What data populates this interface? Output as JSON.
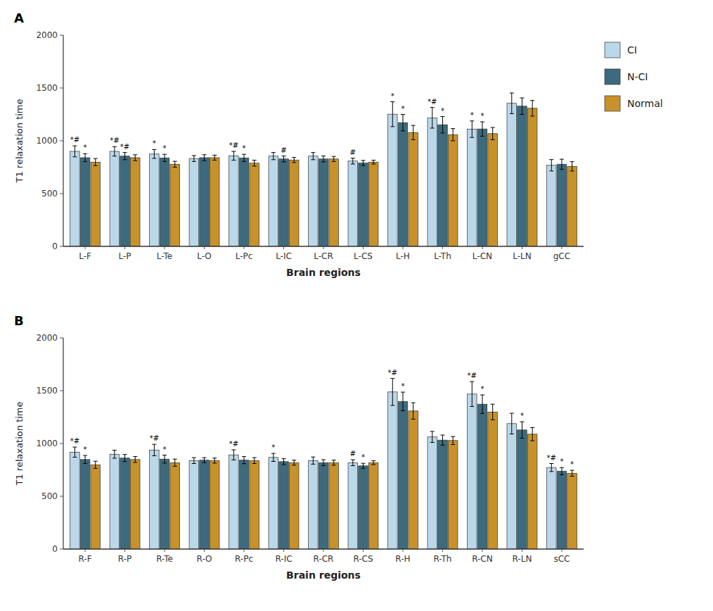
{
  "chart_data": [
    {
      "type": "bar",
      "title": "A",
      "xlabel": "Brain regions",
      "ylabel": "T1 relaxation time",
      "categories": [
        "L-F",
        "L-P",
        "L-Te",
        "L-O",
        "L-Pc",
        "L-IC",
        "L-CR",
        "L-CS",
        "L-H",
        "L-Th",
        "L-CN",
        "L-LN",
        "gCC"
      ],
      "series": [
        {
          "name": "CI",
          "color": "#bbd8ea",
          "values": [
            900,
            900,
            875,
            832,
            858,
            855,
            855,
            808,
            1252,
            1218,
            1110,
            1355,
            768
          ],
          "errors": [
            52,
            45,
            42,
            28,
            42,
            34,
            34,
            28,
            118,
            98,
            78,
            98,
            54
          ],
          "annotations": [
            "*#",
            "*#",
            "*",
            null,
            "*#",
            null,
            null,
            "#",
            "*",
            "*#",
            "*",
            null,
            null
          ]
        },
        {
          "name": "N-CI",
          "color": "#3d6b7d",
          "values": [
            840,
            855,
            838,
            840,
            838,
            828,
            828,
            790,
            1172,
            1152,
            1112,
            1328,
            778
          ],
          "errors": [
            38,
            34,
            34,
            28,
            34,
            28,
            28,
            24,
            78,
            78,
            68,
            78,
            48
          ],
          "annotations": [
            "*",
            "*#",
            "*",
            null,
            "*",
            "#",
            null,
            null,
            "*",
            "*",
            "*",
            null,
            null
          ]
        },
        {
          "name": "Normal",
          "color": "#c8922a",
          "values": [
            798,
            840,
            778,
            840,
            788,
            818,
            828,
            798,
            1078,
            1058,
            1068,
            1308,
            758
          ],
          "errors": [
            34,
            28,
            28,
            24,
            28,
            24,
            24,
            18,
            68,
            58,
            58,
            74,
            44
          ]
        }
      ],
      "ylim": [
        0,
        2000
      ],
      "yticks": [
        0,
        500,
        1000,
        1500,
        2000
      ],
      "grid": false,
      "legend": "right"
    },
    {
      "type": "bar",
      "title": "B",
      "xlabel": "Brain regions",
      "ylabel": "T1 relaxation time",
      "categories": [
        "R-F",
        "R-P",
        "R-Te",
        "R-O",
        "R-Pc",
        "R-IC",
        "R-CR",
        "R-CS",
        "R-H",
        "R-Th",
        "R-CN",
        "R-LN",
        "sCC"
      ],
      "series": [
        {
          "name": "CI",
          "color": "#bbd8ea",
          "values": [
            918,
            898,
            938,
            838,
            892,
            868,
            838,
            818,
            1488,
            1062,
            1468,
            1188,
            772
          ],
          "errors": [
            48,
            38,
            54,
            28,
            48,
            38,
            34,
            28,
            128,
            52,
            118,
            98,
            38
          ],
          "annotations": [
            "*#",
            null,
            "*#",
            null,
            "*#",
            "*",
            null,
            "#",
            "*#",
            null,
            "*#",
            null,
            "*#"
          ]
        },
        {
          "name": "N-CI",
          "color": "#3d6b7d",
          "values": [
            848,
            862,
            852,
            842,
            842,
            828,
            818,
            788,
            1398,
            1032,
            1372,
            1128,
            738
          ],
          "errors": [
            38,
            34,
            38,
            24,
            34,
            28,
            28,
            24,
            88,
            48,
            88,
            78,
            34
          ],
          "annotations": [
            "*",
            null,
            "*",
            null,
            null,
            null,
            null,
            "*",
            "*",
            null,
            "*",
            "*",
            "*"
          ]
        },
        {
          "name": "Normal",
          "color": "#c8922a",
          "values": [
            798,
            848,
            818,
            838,
            838,
            818,
            818,
            818,
            1308,
            1028,
            1298,
            1088,
            718
          ],
          "errors": [
            34,
            28,
            34,
            24,
            28,
            24,
            24,
            18,
            78,
            38,
            74,
            62,
            28
          ],
          "annotations": [
            null,
            null,
            null,
            null,
            null,
            null,
            null,
            null,
            null,
            null,
            null,
            null,
            "*"
          ]
        }
      ],
      "ylim": [
        0,
        2000
      ],
      "yticks": [
        0,
        500,
        1000,
        1500,
        2000
      ],
      "grid": false
    }
  ]
}
